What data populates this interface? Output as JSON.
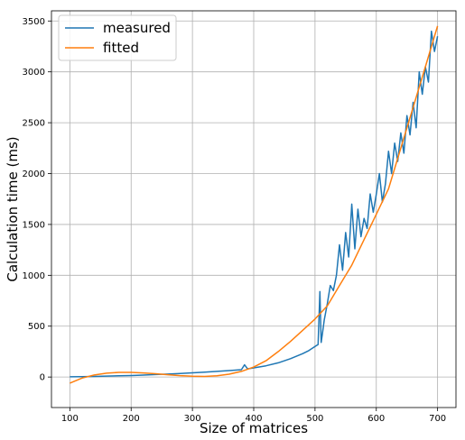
{
  "chart_data": {
    "type": "line",
    "title": "",
    "xlabel": "Size of matrices",
    "ylabel": "Calculation time (ms)",
    "xlim": [
      70,
      730
    ],
    "ylim": [
      -300,
      3600
    ],
    "xticks": [
      100,
      200,
      300,
      400,
      500,
      600,
      700
    ],
    "yticks": [
      0,
      500,
      1000,
      1500,
      2000,
      2500,
      3000,
      3500
    ],
    "grid": true,
    "legend_position": "top-left",
    "series": [
      {
        "name": "measured",
        "color": "#1f77b4",
        "x": [
          100,
          120,
          140,
          160,
          180,
          200,
          220,
          240,
          260,
          280,
          300,
          320,
          340,
          360,
          380,
          385,
          390,
          400,
          420,
          440,
          460,
          480,
          490,
          500,
          505,
          508,
          510,
          512,
          515,
          520,
          525,
          530,
          535,
          540,
          545,
          550,
          555,
          560,
          565,
          570,
          575,
          580,
          585,
          590,
          595,
          600,
          605,
          610,
          615,
          620,
          625,
          630,
          635,
          640,
          645,
          650,
          655,
          660,
          665,
          670,
          675,
          680,
          685,
          690,
          695,
          700
        ],
        "y": [
          2,
          4,
          6,
          9,
          12,
          15,
          19,
          24,
          29,
          35,
          41,
          48,
          55,
          63,
          72,
          120,
          80,
          90,
          110,
          140,
          180,
          230,
          260,
          300,
          320,
          840,
          340,
          420,
          560,
          720,
          900,
          850,
          1000,
          1300,
          1050,
          1420,
          1180,
          1700,
          1260,
          1650,
          1380,
          1560,
          1460,
          1800,
          1620,
          1800,
          2000,
          1720,
          1900,
          2220,
          2000,
          2300,
          2120,
          2400,
          2200,
          2570,
          2380,
          2700,
          2450,
          3000,
          2780,
          3050,
          2900,
          3400,
          3200,
          3350
        ]
      },
      {
        "name": "fitted",
        "color": "#ff7f0e",
        "x": [
          100,
          120,
          140,
          160,
          180,
          200,
          220,
          240,
          260,
          280,
          300,
          320,
          340,
          360,
          380,
          400,
          420,
          440,
          460,
          480,
          500,
          520,
          540,
          560,
          580,
          600,
          620,
          640,
          660,
          680,
          700
        ],
        "y": [
          -60,
          -10,
          20,
          38,
          46,
          46,
          40,
          32,
          23,
          14,
          8,
          6,
          12,
          28,
          55,
          98,
          160,
          250,
          350,
          460,
          570,
          700,
          900,
          1100,
          1350,
          1600,
          1850,
          2250,
          2650,
          3050,
          3450
        ]
      }
    ]
  }
}
